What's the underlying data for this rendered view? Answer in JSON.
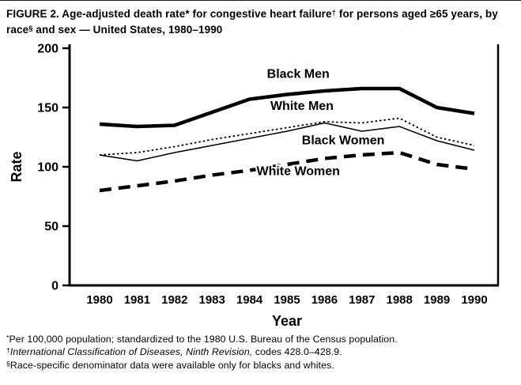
{
  "title": {
    "parts": [
      {
        "t": "FIGURE 2. Age-adjusted death rate* for congestive heart failure"
      },
      {
        "t": "†"
      },
      {
        "t": " for persons aged ≥65 years, by race"
      },
      {
        "t": "§"
      },
      {
        "t": " and sex — United States, 1980–1990"
      }
    ]
  },
  "chart_data": {
    "type": "line",
    "x": [
      1980,
      1981,
      1982,
      1983,
      1984,
      1985,
      1986,
      1987,
      1988,
      1989,
      1990
    ],
    "series": [
      {
        "name": "Black Men",
        "style": "solid-thick",
        "values": [
          136,
          134,
          135,
          146,
          157,
          161,
          164,
          166,
          166,
          150,
          145
        ]
      },
      {
        "name": "White Men",
        "style": "dotted",
        "values": [
          110,
          112,
          117,
          123,
          128,
          133,
          138,
          137,
          141,
          125,
          118
        ]
      },
      {
        "name": "Black Women",
        "style": "solid-thin",
        "values": [
          110,
          105,
          112,
          118,
          124,
          130,
          137,
          130,
          134,
          122,
          114
        ]
      },
      {
        "name": "White Women",
        "style": "dashed-thick",
        "values": [
          80,
          84,
          88,
          93,
          97,
          102,
          107,
          110,
          112,
          102,
          98
        ]
      }
    ],
    "annotations": [
      {
        "label": "Black Men",
        "x": 1985.3,
        "y": 175
      },
      {
        "label": "White Men",
        "x": 1985.4,
        "y": 148
      },
      {
        "label": "Black Women",
        "x": 1986.5,
        "y": 119
      },
      {
        "label": "White Women",
        "x": 1985.3,
        "y": 93
      }
    ],
    "title": "Age-adjusted death rate for congestive heart failure, persons aged >=65 years, by race and sex, United States, 1980-1990",
    "xlabel": "Year",
    "ylabel": "Rate",
    "ylim": [
      0,
      200
    ],
    "yticks": [
      0,
      50,
      100,
      150,
      200
    ],
    "grid": false,
    "legend_position": "inline-annotations"
  },
  "footnotes": [
    {
      "marker": "*",
      "text": "Per 100,000 population; standardized to the 1980 U.S. Bureau of the Census population."
    },
    {
      "marker": "†",
      "italic": "International Classification of Diseases, Ninth Revision,",
      "text": " codes 428.0–428.9."
    },
    {
      "marker": "§",
      "text": "Race-specific denominator data were available only for blacks and whites."
    }
  ]
}
